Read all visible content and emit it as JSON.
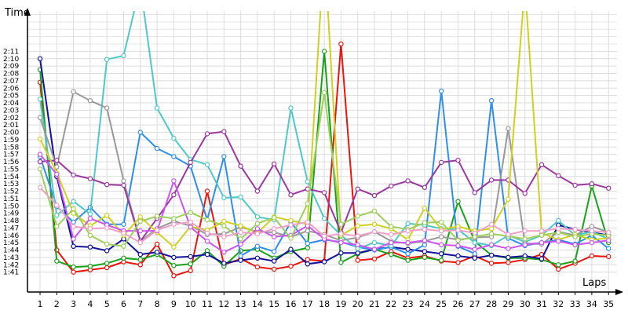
{
  "chart_data": {
    "type": "line",
    "title": "",
    "xlabel": "Laps",
    "ylabel": "Time",
    "xlim": [
      1,
      35
    ],
    "ylim": [
      100,
      132
    ],
    "x_ticks": [
      1,
      2,
      3,
      4,
      5,
      6,
      7,
      8,
      9,
      10,
      11,
      12,
      13,
      14,
      15,
      16,
      17,
      18,
      19,
      20,
      21,
      22,
      23,
      24,
      25,
      26,
      27,
      28,
      29,
      30,
      31,
      32,
      33,
      34,
      35
    ],
    "y_ticks": [
      "1:41",
      "1:42",
      "1:43",
      "1:44",
      "1:45",
      "1:46",
      "1:47",
      "1:48",
      "1:49",
      "1:50",
      "1:51",
      "1:52",
      "1:53",
      "1:54",
      "1:55",
      "1:56",
      "1:57",
      "1:58",
      "1:59",
      "2:00",
      "2:01",
      "2:02",
      "2:03",
      "2:04",
      "2:05",
      "2:06",
      "2:07",
      "2:08",
      "2:09",
      "2:10",
      "2:11"
    ],
    "grid": true,
    "legend": "none",
    "series": [
      {
        "color": "#e8160c",
        "values": [
          126.8,
          104,
          101.0,
          101.3,
          101.6,
          102.4,
          102.0,
          104.8,
          100.5,
          101.2,
          112.0,
          102.0,
          102.8,
          101.7,
          101.4,
          101.8,
          102.7,
          102.5,
          132.0,
          102.6,
          102.8,
          103.8,
          102.9,
          103.2,
          102.5,
          102.3,
          103.2,
          102.2,
          102.3,
          102.7,
          103.4,
          101.4,
          102.2,
          103.2,
          103.1
        ]
      },
      {
        "color": "#1aa11a",
        "values": [
          128.5,
          102.5,
          101.7,
          101.8,
          102.2,
          102.9,
          102.7,
          103.4,
          101.9,
          102.1,
          103.9,
          101.8,
          103.9,
          104.1,
          102.9,
          103.8,
          104.3,
          131.0,
          102.3,
          103.5,
          104.1,
          103.4,
          102.6,
          103.0,
          102.6,
          110.6,
          105.2,
          103.3,
          102.9,
          102.9,
          102.7,
          102.0,
          102.5,
          112.7,
          105.0
        ]
      },
      {
        "color": "#111199",
        "values": [
          130.0,
          114,
          104.5,
          104.4,
          103.9,
          105.5,
          103.4,
          103.7,
          103.0,
          103.1,
          103.4,
          102.2,
          102.6,
          102.9,
          102.5,
          104.1,
          102.1,
          102.4,
          103.6,
          103.6,
          104.1,
          104.4,
          104.1,
          103.8,
          103.5,
          103.2,
          102.9,
          103.3,
          103.0,
          103.2,
          102.8,
          107.4,
          106.8,
          106.4,
          106.0
        ]
      },
      {
        "color": "#2f8fe8",
        "values": [
          116.7,
          109.9,
          107.8,
          109.8,
          107.5,
          107.5,
          120.0,
          117.8,
          116.7,
          115.4,
          108.1,
          116.7,
          103.2,
          104.5,
          103.8,
          107.8,
          104.9,
          105.4,
          105.1,
          104.4,
          104.0,
          104.4,
          103.5,
          104.7,
          125.6,
          104.5,
          103.5,
          124.3,
          105.6,
          104.6,
          105.0,
          105.4,
          104.8,
          106.0,
          104.2
        ]
      },
      {
        "color": "#50c8c8",
        "values": [
          124.5,
          108.7,
          110.6,
          108.9,
          129.9,
          130.4,
          140.0,
          123.3,
          119.2,
          116.3,
          115.6,
          111.1,
          111.2,
          108.5,
          108.1,
          123.3,
          113.3,
          108.3,
          106.0,
          104.2,
          105.0,
          104.6,
          107.6,
          107.4,
          106.9,
          106.8,
          105.0,
          104.6,
          106.0,
          105.1,
          106.0,
          108.0,
          106.0,
          106.5,
          105.5
        ]
      },
      {
        "color": "#999999",
        "values": [
          122.0,
          115.3,
          125.5,
          124.3,
          123.3,
          113.4,
          105.2,
          106.9,
          107.9,
          107.3,
          106.1,
          106.2,
          107.1,
          106.5,
          106.4,
          105.8,
          106.6,
          106.1,
          105.3,
          105.7,
          106.5,
          105.2,
          104.9,
          105.2,
          105.8,
          105.4,
          105.7,
          105.8,
          120.5,
          104.9,
          104.8,
          106.5,
          106.0,
          107.2,
          106.4
        ]
      },
      {
        "color": "#9b38a0",
        "values": [
          116.0,
          116.2,
          114.2,
          113.7,
          112.9,
          112.8,
          105.2,
          108.3,
          111.5,
          115.9,
          119.8,
          120.1,
          115.4,
          112.0,
          115.7,
          111.5,
          112.3,
          111.8,
          106.4,
          112.3,
          111.4,
          112.7,
          113.4,
          112.5,
          115.9,
          116.2,
          111.8,
          113.5,
          113.5,
          111.7,
          115.6,
          114.1,
          112.8,
          113.0,
          112.4
        ]
      },
      {
        "color": "#d0d020",
        "values": [
          119.1,
          114.5,
          109.0,
          107.3,
          108.7,
          106.0,
          108.5,
          106.4,
          104.4,
          107.2,
          106.7,
          107.9,
          107.3,
          106.3,
          108.5,
          108.0,
          107.5,
          145.0,
          106.0,
          107.3,
          107.5,
          106.9,
          105.4,
          109.7,
          106.8,
          107.2,
          106.6,
          106.9,
          110.9,
          140.0,
          106.3,
          105.4,
          106.1,
          105.4,
          105.6
        ]
      },
      {
        "color": "#cc55ee",
        "values": [
          117.0,
          114.3,
          105.5,
          108.3,
          107.4,
          106.6,
          106.6,
          106.6,
          113.4,
          107.1,
          105.2,
          103.7,
          104.8,
          106.9,
          105.8,
          106.0,
          107.3,
          105.5,
          105.0,
          104.7,
          104.1,
          105.0,
          105.0,
          105.3,
          104.7,
          104.6,
          104.1,
          104.7,
          104.2,
          104.7,
          105.0,
          105.2,
          104.7,
          105.0,
          105.3
        ]
      },
      {
        "color": "#9dcf5a",
        "values": [
          115.0,
          107.2,
          109.6,
          106.0,
          104.8,
          104.5,
          107.9,
          108.6,
          108.3,
          109.1,
          108.1,
          107.3,
          105.5,
          107.6,
          108.4,
          105.6,
          110.3,
          125.4,
          107.5,
          108.6,
          109.3,
          107.2,
          106.8,
          107.7,
          107.8,
          105.3,
          105.8,
          106.2,
          105.9,
          105.5,
          106.0,
          106.4,
          105.8,
          106.2,
          106.0
        ]
      },
      {
        "color": "#f0a0c8",
        "values": [
          112.5,
          110.1,
          107.2,
          106.9,
          107.0,
          106.3,
          105.0,
          106.7,
          107.5,
          107.8,
          106.3,
          105.8,
          106.4,
          106.2,
          106.9,
          107.4,
          107.8,
          105.9,
          106.2,
          105.9,
          106.5,
          106.1,
          106.6,
          106.8,
          106.6,
          106.7,
          106.3,
          107.5,
          106.1,
          106.6,
          106.6,
          106.9,
          106.8,
          106.6,
          106.4
        ]
      }
    ]
  }
}
